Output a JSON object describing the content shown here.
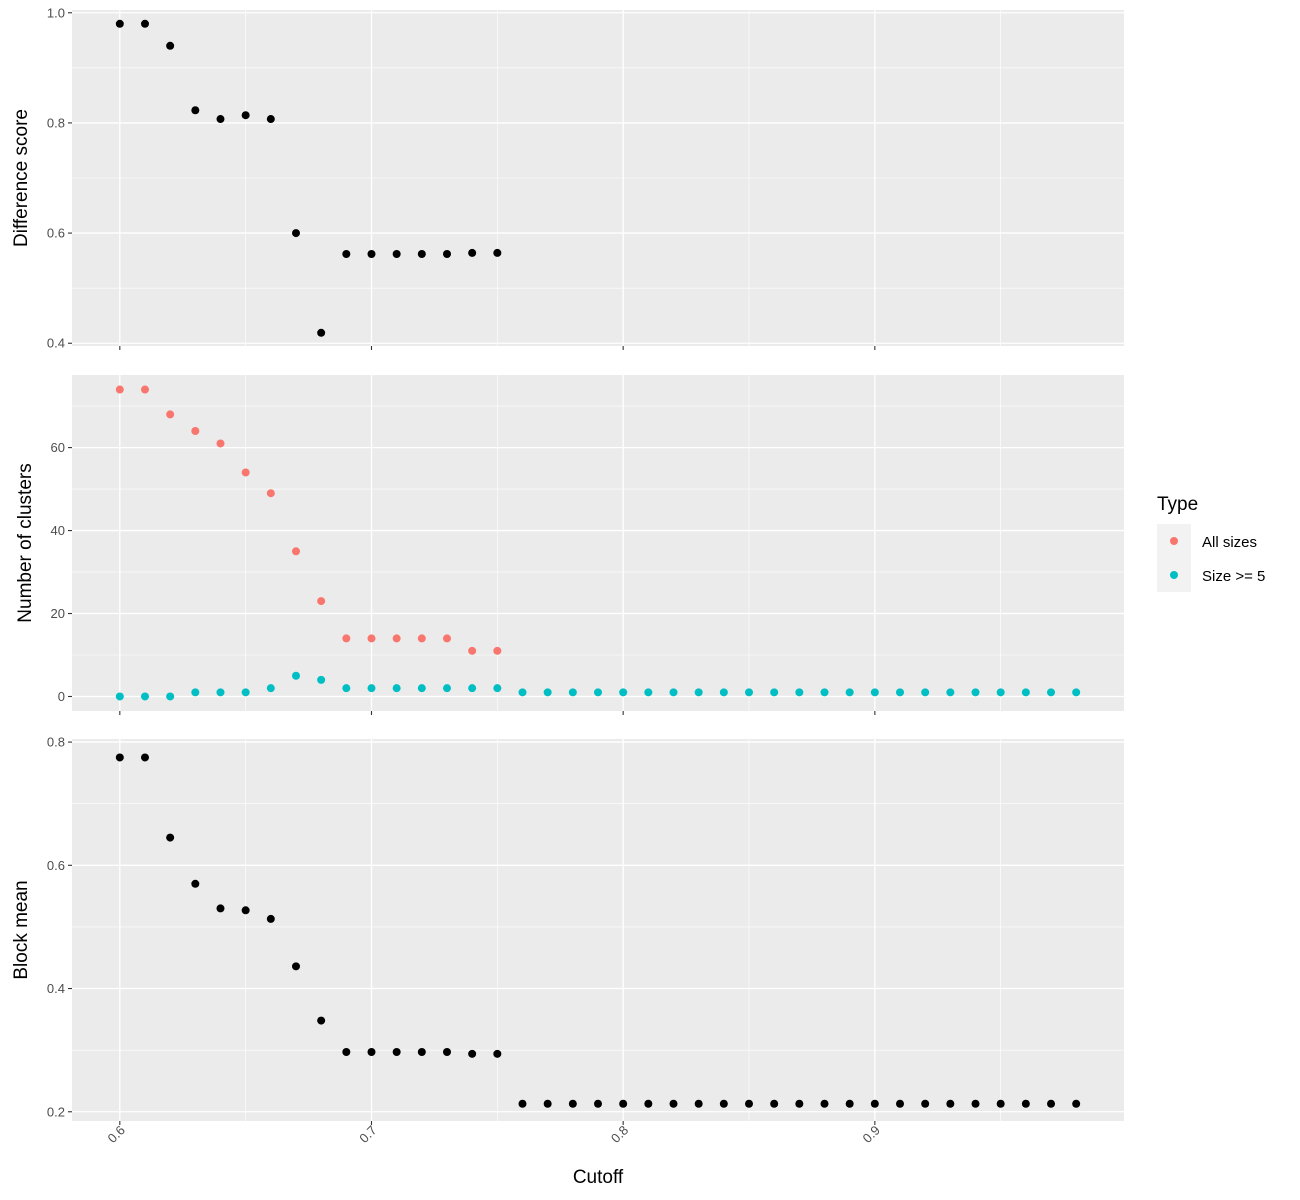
{
  "chart_data": [
    {
      "type": "scatter",
      "ylabel": "Difference score",
      "ylim": [
        0.395,
        1.005
      ],
      "yticks": [
        0.4,
        0.6,
        0.8,
        1.0
      ],
      "ytick_labels": [
        "0.4",
        "0.6",
        "0.8",
        "1.0"
      ],
      "series": [
        {
          "color": "#000000",
          "x": [
            0.6,
            0.61,
            0.62,
            0.63,
            0.64,
            0.65,
            0.66,
            0.67,
            0.68,
            0.69,
            0.7,
            0.71,
            0.72,
            0.73,
            0.74,
            0.75
          ],
          "y": [
            0.98,
            0.98,
            0.94,
            0.823,
            0.807,
            0.814,
            0.807,
            0.6,
            0.419,
            0.562,
            0.562,
            0.562,
            0.562,
            0.562,
            0.564,
            0.564
          ]
        }
      ]
    },
    {
      "type": "scatter",
      "ylabel": "Number of clusters",
      "ylim": [
        -3.5,
        77.5
      ],
      "yticks": [
        0,
        20,
        40,
        60
      ],
      "ytick_labels": [
        "0",
        "20",
        "40",
        "60"
      ],
      "series": [
        {
          "name": "All sizes",
          "color": "#F8766D",
          "x": [
            0.6,
            0.61,
            0.62,
            0.63,
            0.64,
            0.65,
            0.66,
            0.67,
            0.68,
            0.69,
            0.7,
            0.71,
            0.72,
            0.73,
            0.74,
            0.75
          ],
          "y": [
            74,
            74,
            68,
            64,
            61,
            54,
            49,
            35,
            23,
            14,
            14,
            14,
            14,
            14,
            11,
            11
          ]
        },
        {
          "name": "Size >= 5",
          "color": "#00BFC4",
          "x": [
            0.6,
            0.61,
            0.62,
            0.63,
            0.64,
            0.65,
            0.66,
            0.67,
            0.68,
            0.69,
            0.7,
            0.71,
            0.72,
            0.73,
            0.74,
            0.75,
            0.76,
            0.77,
            0.78,
            0.79,
            0.8,
            0.81,
            0.82,
            0.83,
            0.84,
            0.85,
            0.86,
            0.87,
            0.88,
            0.89,
            0.9,
            0.91,
            0.92,
            0.93,
            0.94,
            0.95,
            0.96,
            0.97,
            0.98
          ],
          "y": [
            0,
            0,
            0,
            1,
            1,
            1,
            2,
            5,
            4,
            2,
            2,
            2,
            2,
            2,
            2,
            2,
            1,
            1,
            1,
            1,
            1,
            1,
            1,
            1,
            1,
            1,
            1,
            1,
            1,
            1,
            1,
            1,
            1,
            1,
            1,
            1,
            1,
            1,
            1
          ]
        }
      ]
    },
    {
      "type": "scatter",
      "ylabel": "Block mean",
      "xlabel": "Cutoff",
      "ylim": [
        0.185,
        0.805
      ],
      "yticks": [
        0.2,
        0.4,
        0.6,
        0.8
      ],
      "ytick_labels": [
        "0.2",
        "0.4",
        "0.6",
        "0.8"
      ],
      "series": [
        {
          "color": "#000000",
          "x": [
            0.6,
            0.61,
            0.62,
            0.63,
            0.64,
            0.65,
            0.66,
            0.67,
            0.68,
            0.69,
            0.7,
            0.71,
            0.72,
            0.73,
            0.74,
            0.75,
            0.76,
            0.77,
            0.78,
            0.79,
            0.8,
            0.81,
            0.82,
            0.83,
            0.84,
            0.85,
            0.86,
            0.87,
            0.88,
            0.89,
            0.9,
            0.91,
            0.92,
            0.93,
            0.94,
            0.95,
            0.96,
            0.97,
            0.98
          ],
          "y": [
            0.775,
            0.775,
            0.645,
            0.57,
            0.53,
            0.527,
            0.513,
            0.436,
            0.348,
            0.297,
            0.297,
            0.297,
            0.297,
            0.297,
            0.294,
            0.294,
            0.213,
            0.213,
            0.213,
            0.213,
            0.213,
            0.213,
            0.213,
            0.213,
            0.213,
            0.213,
            0.213,
            0.213,
            0.213,
            0.213,
            0.213,
            0.213,
            0.213,
            0.213,
            0.213,
            0.213,
            0.213,
            0.213,
            0.213
          ]
        }
      ]
    }
  ],
  "shared_x": {
    "xlim": [
      0.581,
      0.999
    ],
    "xticks": [
      0.6,
      0.7,
      0.8,
      0.9
    ],
    "xtick_labels": [
      "0.6",
      "0.7",
      "0.8",
      "0.9"
    ],
    "xlabel": "Cutoff"
  },
  "legend": {
    "title": "Type",
    "placement": "right",
    "items": [
      {
        "label": "All sizes",
        "color": "#F8766D"
      },
      {
        "label": "Size >= 5",
        "color": "#00BFC4"
      }
    ]
  },
  "theme": {
    "panel_background": "#EBEBEB",
    "grid_color": "#FFFFFF",
    "legend_key_background": "#F2F2F2"
  }
}
